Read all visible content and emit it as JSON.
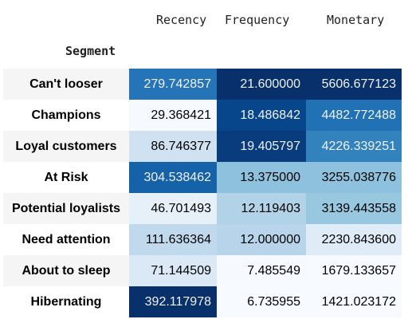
{
  "table": {
    "index_name": "Segment",
    "columns": [
      "Recency",
      "Frequency",
      "Monetary"
    ],
    "rows": [
      {
        "segment": "Can't looser",
        "recency": "279.742857",
        "frequency": "21.600000",
        "monetary": "5606.677123"
      },
      {
        "segment": "Champions",
        "recency": "29.368421",
        "frequency": "18.486842",
        "monetary": "4482.772488"
      },
      {
        "segment": "Loyal customers",
        "recency": "86.746377",
        "frequency": "19.405797",
        "monetary": "4226.339251"
      },
      {
        "segment": "At Risk",
        "recency": "304.538462",
        "frequency": "13.375000",
        "monetary": "3255.038776"
      },
      {
        "segment": "Potential loyalists",
        "recency": "46.701493",
        "frequency": "12.119403",
        "monetary": "3139.443558"
      },
      {
        "segment": "Need attention",
        "recency": "111.636364",
        "frequency": "12.000000",
        "monetary": "2230.843600"
      },
      {
        "segment": "About to sleep",
        "recency": "71.144509",
        "frequency": "7.485549",
        "monetary": "1679.133657"
      },
      {
        "segment": "Hibernating",
        "recency": "392.117978",
        "frequency": "6.735955",
        "monetary": "1421.023172"
      }
    ],
    "cell_colors": {
      "recency": [
        "#2474b7",
        "#f6faff",
        "#d0e1f2",
        "#1562a9",
        "#e6f0f9",
        "#c1d9ed",
        "#dbe9f6",
        "#08306b"
      ],
      "frequency": [
        "#08306b",
        "#08468b",
        "#083c7d",
        "#8dc1dd",
        "#b2d2e8",
        "#b7d4ea",
        "#f6faff",
        "#f7fbff"
      ],
      "monetary": [
        "#08306b",
        "#2171b5",
        "#3282be",
        "#8dc1dd",
        "#98c7e0",
        "#dfebf7",
        "#f7fbff",
        "#f7fbff"
      ],
      "light_text": "#f1f1f1",
      "dark_text": "#000000"
    }
  }
}
